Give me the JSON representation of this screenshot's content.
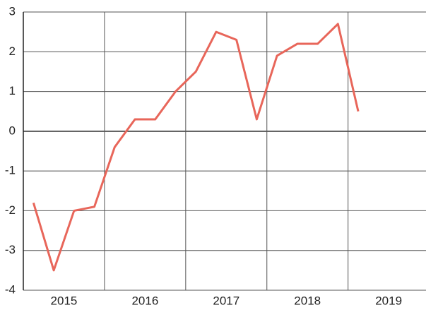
{
  "chart_data": {
    "type": "line",
    "x": [
      2015.125,
      2015.375,
      2015.625,
      2015.875,
      2016.125,
      2016.375,
      2016.625,
      2016.875,
      2017.125,
      2017.375,
      2017.625,
      2017.875,
      2018.125,
      2018.375,
      2018.625,
      2018.875,
      2019.125
    ],
    "series": [
      {
        "color": "#e8665a",
        "values": [
          -1.8,
          -3.5,
          -2.0,
          -1.9,
          -0.4,
          0.3,
          0.3,
          1.0,
          1.5,
          2.5,
          2.3,
          0.3,
          1.9,
          2.2,
          2.2,
          2.7,
          0.5
        ]
      }
    ],
    "xlim": [
      2015,
      2019.96
    ],
    "xticks": [
      {
        "value": 2015.5,
        "label": "2015"
      },
      {
        "value": 2016.5,
        "label": "2016"
      },
      {
        "value": 2017.5,
        "label": "2017"
      },
      {
        "value": 2018.5,
        "label": "2018"
      },
      {
        "value": 2019.5,
        "label": "2019"
      }
    ],
    "x_grid_lines": [
      2016,
      2017,
      2018,
      2019
    ],
    "ylim": [
      -4,
      3
    ],
    "yticks": [
      -4,
      -3,
      -2,
      -1,
      0,
      1,
      2,
      3
    ],
    "grid": true
  }
}
